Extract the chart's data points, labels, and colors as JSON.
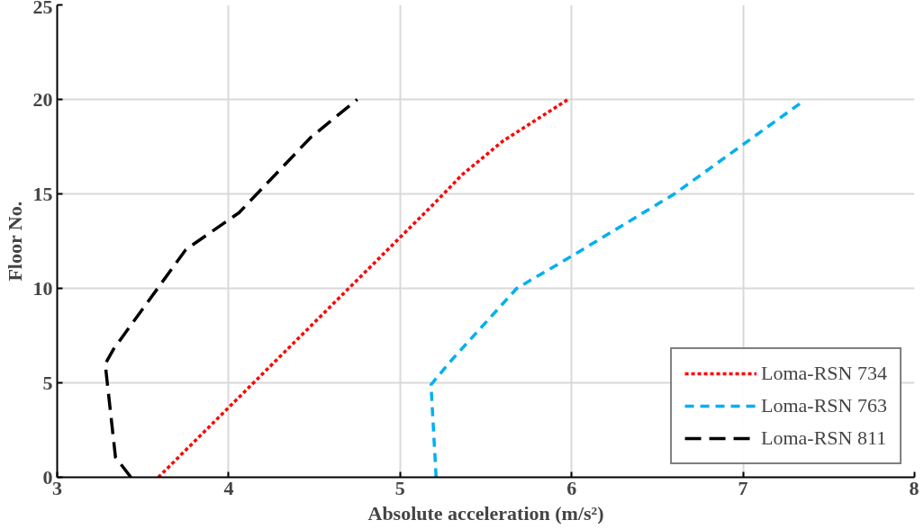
{
  "chart_data": {
    "type": "line",
    "xlabel": "Absolute acceleration (m/s²)",
    "ylabel": "Floor No.",
    "xlim": [
      3,
      8
    ],
    "xticks": [
      3,
      4,
      5,
      6,
      7,
      8
    ],
    "ylim": [
      0,
      25
    ],
    "yticks": [
      0,
      5,
      10,
      15,
      20,
      25
    ],
    "grid": true,
    "legend": "bottom right",
    "marker": "none",
    "series": [
      {
        "name": "Loma-RSN 734",
        "color": "#ff0000",
        "line_style": "dotted",
        "x": [
          3.59,
          5.2,
          5.36,
          5.6,
          5.98
        ],
        "values": [
          0,
          14.5,
          16,
          17.8,
          20
        ]
      },
      {
        "name": "Loma-RSN 763",
        "color": "#00b0f0",
        "line_style": "dashed",
        "x": [
          5.21,
          5.18,
          5.3,
          5.68,
          6.0,
          6.6,
          7.35
        ],
        "values": [
          0,
          4.9,
          6.2,
          10,
          11.7,
          15,
          19.9
        ]
      },
      {
        "name": "Loma-RSN 811",
        "color": "#000000",
        "line_style": "dashed",
        "x": [
          3.43,
          3.34,
          3.28,
          3.33,
          3.75,
          4.06,
          4.48,
          4.75
        ],
        "values": [
          0,
          1.06,
          6,
          6.8,
          12.05,
          14,
          18,
          20
        ]
      }
    ]
  }
}
